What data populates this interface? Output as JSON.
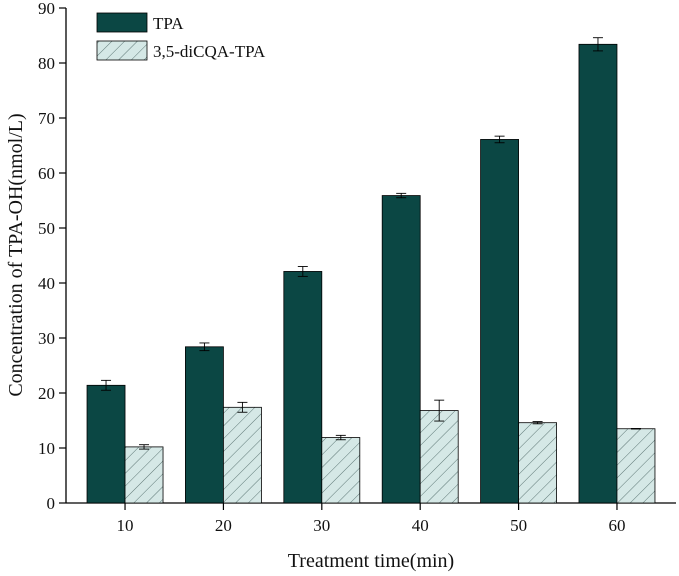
{
  "chart_data": {
    "type": "bar",
    "title": "",
    "xlabel": "Treatment time(min)",
    "ylabel": "Concentration of TPA-OH(nmol/L)",
    "ylim": [
      0,
      90
    ],
    "yticks": [
      0,
      10,
      20,
      30,
      40,
      50,
      60,
      70,
      80,
      90
    ],
    "categories": [
      "10",
      "20",
      "30",
      "40",
      "50",
      "60"
    ],
    "series": [
      {
        "name": "TPA",
        "color": "#0b4744",
        "pattern": "solid",
        "values": [
          21.4,
          28.4,
          42.1,
          55.9,
          66.1,
          83.4
        ],
        "errors": [
          0.9,
          0.7,
          0.9,
          0.4,
          0.6,
          1.2
        ]
      },
      {
        "name": "3,5-diCQA-TPA",
        "color": "#d5e8e6",
        "pattern": "diagonal-hatch",
        "values": [
          10.2,
          17.4,
          11.9,
          16.8,
          14.6,
          13.5
        ],
        "errors": [
          0.4,
          0.9,
          0.4,
          1.9,
          0.2,
          0.05
        ]
      }
    ],
    "legend": {
      "position": "top-left"
    },
    "grid": false
  }
}
